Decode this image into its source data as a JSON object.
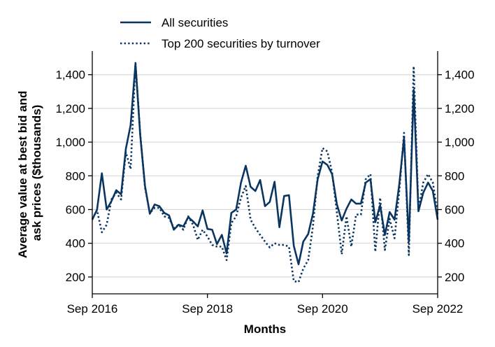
{
  "chart_data": {
    "type": "line",
    "xlabel": "Months",
    "ylabel_lines": [
      "Average value at best bid and",
      "ask prices ($thousands)"
    ],
    "x_ticks": [
      {
        "label": "Sep 2016",
        "value": 2016.667
      },
      {
        "label": "Sep 2018",
        "value": 2018.667
      },
      {
        "label": "Sep 2020",
        "value": 2020.667
      },
      {
        "label": "Sep 2022",
        "value": 2022.667
      }
    ],
    "xlim": [
      2016.667,
      2022.667
    ],
    "y_ticks": [
      {
        "label": "200",
        "value": 200
      },
      {
        "label": "400",
        "value": 400
      },
      {
        "label": "600",
        "value": 600
      },
      {
        "label": "800",
        "value": 800
      },
      {
        "label": "1,000",
        "value": 1000
      },
      {
        "label": "1,200",
        "value": 1200
      },
      {
        "label": "1,400",
        "value": 1400
      }
    ],
    "ylim": [
      100,
      1540
    ],
    "grid": "horizontal",
    "legend_position": "top-left, above plot",
    "colors": {
      "series": "#0a3561",
      "grid": "#d9d9d9",
      "axis": "#000000"
    },
    "series": [
      {
        "name": "All securities",
        "style": "solid",
        "points": [
          [
            2016.667,
            540
          ],
          [
            2016.75,
            600
          ],
          [
            2016.833,
            815
          ],
          [
            2016.917,
            600
          ],
          [
            2017.0,
            650
          ],
          [
            2017.083,
            715
          ],
          [
            2017.167,
            690
          ],
          [
            2017.25,
            960
          ],
          [
            2017.333,
            1100
          ],
          [
            2017.417,
            1465
          ],
          [
            2017.5,
            1040
          ],
          [
            2017.583,
            740
          ],
          [
            2017.667,
            575
          ],
          [
            2017.75,
            630
          ],
          [
            2017.833,
            620
          ],
          [
            2017.917,
            580
          ],
          [
            2018.0,
            565
          ],
          [
            2018.083,
            480
          ],
          [
            2018.167,
            510
          ],
          [
            2018.25,
            500
          ],
          [
            2018.333,
            555
          ],
          [
            2018.417,
            530
          ],
          [
            2018.5,
            500
          ],
          [
            2018.583,
            595
          ],
          [
            2018.667,
            485
          ],
          [
            2018.75,
            480
          ],
          [
            2018.833,
            395
          ],
          [
            2018.917,
            450
          ],
          [
            2019.0,
            340
          ],
          [
            2019.083,
            580
          ],
          [
            2019.167,
            600
          ],
          [
            2019.25,
            760
          ],
          [
            2019.333,
            860
          ],
          [
            2019.417,
            735
          ],
          [
            2019.5,
            710
          ],
          [
            2019.583,
            775
          ],
          [
            2019.667,
            620
          ],
          [
            2019.75,
            645
          ],
          [
            2019.833,
            765
          ],
          [
            2019.917,
            495
          ],
          [
            2020.0,
            680
          ],
          [
            2020.083,
            685
          ],
          [
            2020.167,
            385
          ],
          [
            2020.25,
            275
          ],
          [
            2020.333,
            410
          ],
          [
            2020.417,
            455
          ],
          [
            2020.5,
            575
          ],
          [
            2020.583,
            780
          ],
          [
            2020.667,
            885
          ],
          [
            2020.75,
            865
          ],
          [
            2020.833,
            810
          ],
          [
            2020.917,
            630
          ],
          [
            2021.0,
            535
          ],
          [
            2021.083,
            605
          ],
          [
            2021.167,
            660
          ],
          [
            2021.25,
            635
          ],
          [
            2021.333,
            635
          ],
          [
            2021.417,
            760
          ],
          [
            2021.5,
            780
          ],
          [
            2021.583,
            525
          ],
          [
            2021.667,
            625
          ],
          [
            2021.75,
            450
          ],
          [
            2021.833,
            585
          ],
          [
            2021.917,
            540
          ],
          [
            2022.0,
            750
          ],
          [
            2022.083,
            1025
          ],
          [
            2022.167,
            410
          ],
          [
            2022.25,
            1310
          ],
          [
            2022.333,
            590
          ],
          [
            2022.417,
            700
          ],
          [
            2022.5,
            760
          ],
          [
            2022.583,
            710
          ],
          [
            2022.667,
            540
          ]
        ]
      },
      {
        "name": "Top 200 securities by turnover",
        "style": "dotted",
        "points": [
          [
            2016.667,
            545
          ],
          [
            2016.75,
            595
          ],
          [
            2016.833,
            465
          ],
          [
            2016.917,
            510
          ],
          [
            2017.0,
            660
          ],
          [
            2017.083,
            700
          ],
          [
            2017.167,
            660
          ],
          [
            2017.25,
            940
          ],
          [
            2017.333,
            840
          ],
          [
            2017.417,
            1470
          ],
          [
            2017.5,
            1050
          ],
          [
            2017.583,
            730
          ],
          [
            2017.667,
            580
          ],
          [
            2017.75,
            610
          ],
          [
            2017.833,
            610
          ],
          [
            2017.917,
            560
          ],
          [
            2018.0,
            550
          ],
          [
            2018.083,
            490
          ],
          [
            2018.167,
            510
          ],
          [
            2018.25,
            480
          ],
          [
            2018.333,
            560
          ],
          [
            2018.417,
            510
          ],
          [
            2018.5,
            420
          ],
          [
            2018.583,
            480
          ],
          [
            2018.667,
            440
          ],
          [
            2018.75,
            390
          ],
          [
            2018.833,
            380
          ],
          [
            2018.917,
            380
          ],
          [
            2019.0,
            300
          ],
          [
            2019.083,
            520
          ],
          [
            2019.167,
            560
          ],
          [
            2019.25,
            670
          ],
          [
            2019.333,
            740
          ],
          [
            2019.417,
            540
          ],
          [
            2019.5,
            490
          ],
          [
            2019.583,
            450
          ],
          [
            2019.667,
            410
          ],
          [
            2019.75,
            375
          ],
          [
            2019.833,
            400
          ],
          [
            2019.917,
            390
          ],
          [
            2020.0,
            390
          ],
          [
            2020.083,
            380
          ],
          [
            2020.167,
            175
          ],
          [
            2020.25,
            170
          ],
          [
            2020.333,
            250
          ],
          [
            2020.417,
            300
          ],
          [
            2020.5,
            500
          ],
          [
            2020.583,
            800
          ],
          [
            2020.667,
            965
          ],
          [
            2020.75,
            945
          ],
          [
            2020.833,
            820
          ],
          [
            2020.917,
            580
          ],
          [
            2021.0,
            335
          ],
          [
            2021.083,
            560
          ],
          [
            2021.167,
            380
          ],
          [
            2021.25,
            570
          ],
          [
            2021.333,
            570
          ],
          [
            2021.417,
            780
          ],
          [
            2021.5,
            810
          ],
          [
            2021.583,
            350
          ],
          [
            2021.667,
            670
          ],
          [
            2021.75,
            360
          ],
          [
            2021.833,
            545
          ],
          [
            2021.917,
            430
          ],
          [
            2022.0,
            710
          ],
          [
            2022.083,
            1055
          ],
          [
            2022.167,
            330
          ],
          [
            2022.25,
            1450
          ],
          [
            2022.333,
            600
          ],
          [
            2022.417,
            760
          ],
          [
            2022.5,
            810
          ],
          [
            2022.583,
            760
          ],
          [
            2022.667,
            575
          ]
        ]
      }
    ]
  }
}
